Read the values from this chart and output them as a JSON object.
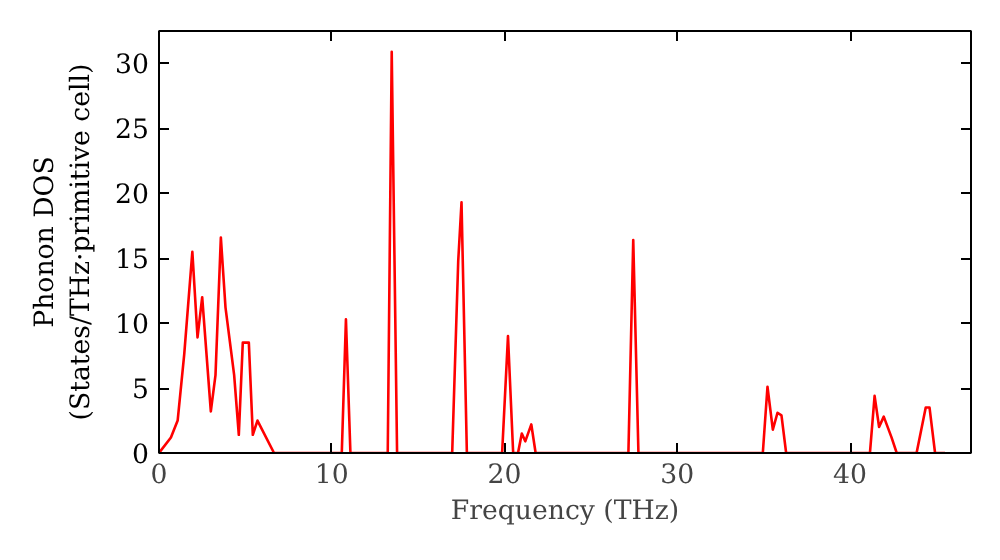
{
  "chart_data": {
    "type": "line",
    "xlabel": "Frequency (THz)",
    "ylabel": "Phonon DOS\n(States/THz·primitive cell)",
    "x": [
      0.0,
      0.69,
      1.08,
      1.46,
      1.93,
      2.23,
      2.5,
      3.0,
      3.27,
      3.58,
      3.85,
      4.35,
      4.62,
      4.85,
      5.2,
      5.43,
      5.7,
      6.66,
      10.58,
      10.82,
      11.08,
      13.24,
      13.47,
      13.78,
      16.97,
      17.32,
      17.51,
      17.82,
      19.86,
      20.2,
      20.5,
      20.78,
      21.0,
      21.2,
      21.55,
      21.8,
      27.17,
      27.45,
      27.75,
      34.95,
      35.22,
      35.53,
      35.8,
      36.03,
      36.3,
      41.15,
      41.42,
      41.68,
      41.95,
      42.4,
      42.7,
      43.85,
      44.38,
      44.6,
      44.92,
      45.5
    ],
    "series": [
      {
        "color": "#ff0000",
        "values": [
          0,
          1.2,
          2.5,
          7.6,
          15.5,
          8.9,
          12.0,
          3.2,
          6.0,
          16.6,
          11.2,
          6.0,
          1.4,
          8.5,
          8.5,
          1.4,
          2.5,
          0,
          0,
          10.3,
          0,
          0,
          30.9,
          0,
          0,
          14.8,
          19.3,
          0,
          0,
          9.0,
          0,
          0,
          1.5,
          0.9,
          2.2,
          0,
          0,
          16.4,
          0,
          0,
          5.1,
          1.8,
          3.1,
          2.9,
          0,
          0,
          4.4,
          2.0,
          2.8,
          1.2,
          0,
          0,
          3.5,
          3.5,
          0,
          0
        ]
      }
    ],
    "xlim": [
      0,
      47
    ],
    "ylim": [
      0,
      32.5
    ],
    "xticks": [
      0,
      10,
      20,
      30,
      40
    ],
    "yticks": [
      0,
      5,
      10,
      15,
      20,
      25,
      30
    ],
    "grid": false,
    "marker": "none",
    "line_style": "solid"
  }
}
